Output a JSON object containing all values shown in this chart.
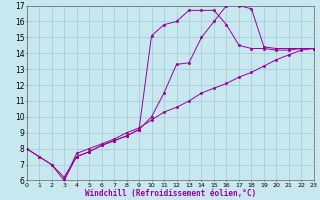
{
  "xlabel": "Windchill (Refroidissement éolien,°C)",
  "bg_color": "#c8e8f0",
  "grid_color": "#a0c8d8",
  "line_color": "#990099",
  "xmin": 0,
  "xmax": 23,
  "ymin": 6,
  "ymax": 17,
  "line1_x": [
    0,
    1,
    2,
    3,
    4,
    5,
    6,
    7,
    8,
    9,
    10,
    11,
    12,
    13,
    14,
    15,
    16,
    17,
    18,
    19,
    20,
    21,
    22,
    23
  ],
  "line1_y": [
    8.0,
    7.5,
    7.0,
    6.0,
    7.7,
    8.0,
    8.3,
    8.6,
    9.0,
    9.3,
    9.8,
    10.3,
    10.6,
    11.0,
    11.5,
    11.8,
    12.1,
    12.5,
    12.8,
    13.2,
    13.6,
    13.9,
    14.2,
    14.3
  ],
  "line2_x": [
    0,
    1,
    2,
    3,
    4,
    5,
    6,
    7,
    8,
    9,
    10,
    11,
    12,
    13,
    14,
    15,
    16,
    17,
    18,
    19,
    20,
    21,
    22,
    23
  ],
  "line2_y": [
    8.0,
    7.5,
    7.0,
    6.2,
    7.5,
    7.8,
    8.2,
    8.5,
    8.8,
    9.2,
    15.1,
    15.8,
    16.0,
    16.7,
    16.7,
    16.7,
    15.8,
    14.5,
    14.3,
    14.3,
    14.2,
    14.2,
    14.3,
    14.3
  ],
  "line3_x": [
    3,
    4,
    5,
    6,
    7,
    8,
    9,
    10,
    11,
    12,
    13,
    14,
    15,
    16,
    17,
    18,
    19,
    20,
    21,
    22,
    23
  ],
  "line3_y": [
    6.0,
    7.5,
    7.8,
    8.2,
    8.5,
    8.8,
    9.2,
    10.0,
    11.5,
    13.3,
    13.4,
    15.0,
    16.0,
    17.0,
    17.0,
    16.8,
    14.4,
    14.3,
    14.3,
    14.3,
    14.3
  ]
}
